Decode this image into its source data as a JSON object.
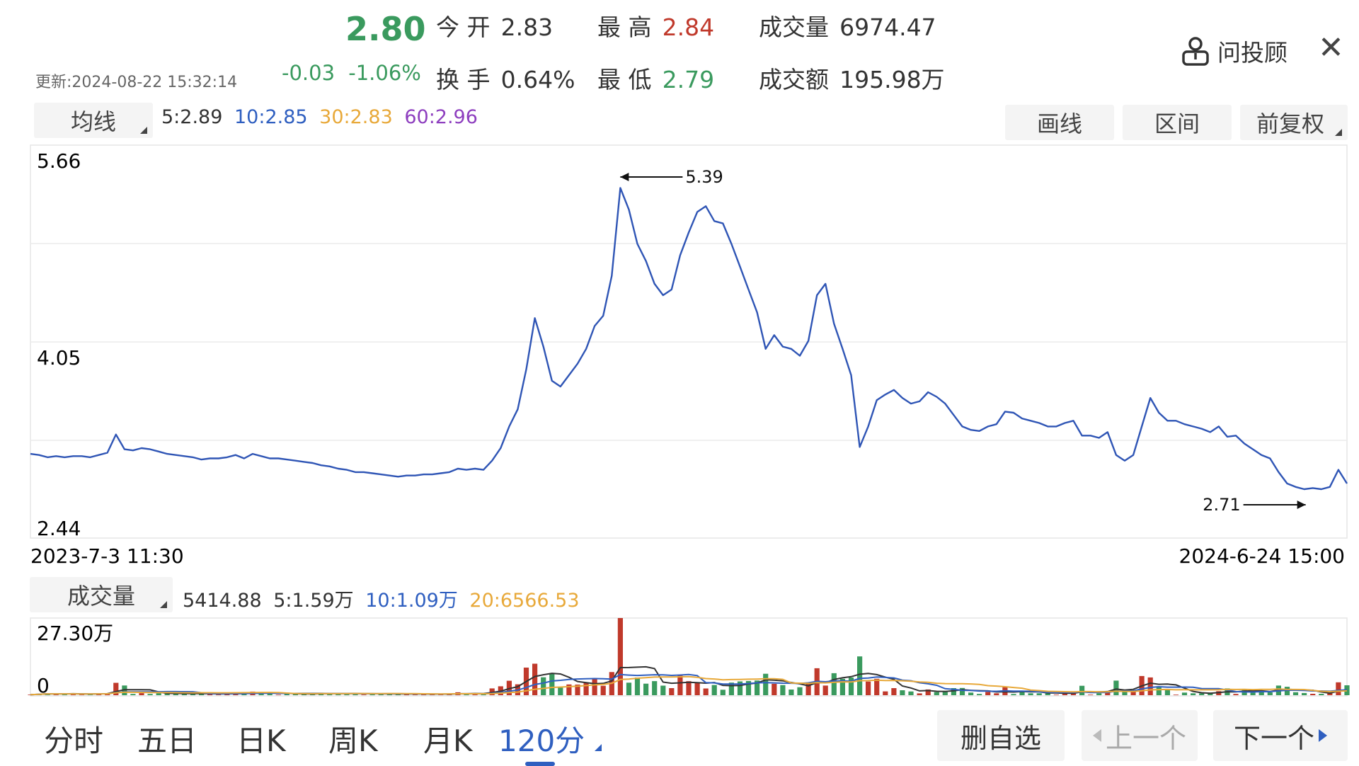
{
  "quote": {
    "price": "2.80",
    "update": "更新:2024-08-22 15:32:14",
    "change": "-0.03",
    "change_pct": "-1.06%",
    "open_label": "今 开",
    "open": "2.83",
    "high_label": "最 高",
    "high": "2.84",
    "volume_label": "成交量",
    "volume": "6974.47",
    "turnover_label": "换 手",
    "turnover": "0.64%",
    "low_label": "最 低",
    "low": "2.79",
    "amount_label": "成交额",
    "amount": "195.98万"
  },
  "header": {
    "advisor_label": "问投顾",
    "close_symbol": "✕"
  },
  "ma_bar": {
    "selector_label": "均线",
    "ma5": "5:2.89",
    "ma10": "10:2.85",
    "ma30": "30:2.83",
    "ma60": "60:2.96",
    "draw_label": "画线",
    "range_label": "区间",
    "adjust_label": "前复权"
  },
  "volume_bar": {
    "selector_label": "成交量",
    "current": "5414.88",
    "ma5": "5:1.59万",
    "ma10": "10:1.09万",
    "ma20": "20:6566.53"
  },
  "colors": {
    "price_line": "#2f55b5",
    "ma5": "#333333",
    "ma10": "#2f5fc0",
    "ma30": "#e8a93a",
    "ma60": "#8e3fbf",
    "up": "#c0392b",
    "down": "#3a9a5e"
  },
  "chart_data": {
    "type": "line",
    "x_start": "2023-7-3 11:30",
    "x_end": "2024-6-24 15:00",
    "ylim": [
      2.44,
      5.66
    ],
    "y_ticks": [
      "5.66",
      "4.05",
      "2.44"
    ],
    "max_label": "5.39",
    "min_label": "2.71",
    "max_value": 5.39,
    "min_value": 2.71,
    "price": [
      3.06,
      3.05,
      3.03,
      3.04,
      3.03,
      3.04,
      3.04,
      3.03,
      3.05,
      3.07,
      3.23,
      3.1,
      3.09,
      3.11,
      3.1,
      3.08,
      3.06,
      3.05,
      3.04,
      3.03,
      3.01,
      3.02,
      3.02,
      3.03,
      3.05,
      3.02,
      3.06,
      3.04,
      3.02,
      3.02,
      3.01,
      3.0,
      2.99,
      2.98,
      2.96,
      2.95,
      2.93,
      2.92,
      2.9,
      2.9,
      2.89,
      2.88,
      2.87,
      2.86,
      2.87,
      2.87,
      2.88,
      2.88,
      2.89,
      2.9,
      2.93,
      2.92,
      2.93,
      2.92,
      3.0,
      3.11,
      3.3,
      3.45,
      3.8,
      4.25,
      4.0,
      3.7,
      3.65,
      3.75,
      3.85,
      3.98,
      4.18,
      4.27,
      4.62,
      5.39,
      5.2,
      4.9,
      4.75,
      4.55,
      4.45,
      4.5,
      4.8,
      5.0,
      5.18,
      5.23,
      5.1,
      5.08,
      4.9,
      4.7,
      4.5,
      4.3,
      3.98,
      4.1,
      4.0,
      3.98,
      3.92,
      4.05,
      4.45,
      4.55,
      4.2,
      3.98,
      3.75,
      3.12,
      3.3,
      3.53,
      3.58,
      3.62,
      3.55,
      3.5,
      3.52,
      3.6,
      3.56,
      3.5,
      3.4,
      3.3,
      3.27,
      3.26,
      3.3,
      3.32,
      3.43,
      3.42,
      3.37,
      3.35,
      3.33,
      3.3,
      3.3,
      3.33,
      3.35,
      3.22,
      3.22,
      3.2,
      3.25,
      3.05,
      3.0,
      3.05,
      3.3,
      3.55,
      3.42,
      3.35,
      3.35,
      3.32,
      3.3,
      3.28,
      3.25,
      3.3,
      3.21,
      3.22,
      3.15,
      3.1,
      3.05,
      3.02,
      2.9,
      2.8,
      2.77,
      2.75,
      2.76,
      2.75,
      2.77,
      2.92,
      2.8
    ]
  },
  "volume_chart": {
    "type": "bar",
    "max_label": "27.30万",
    "zero_label": "0",
    "ylim": [
      0,
      27.3
    ],
    "peak": 27.3
  },
  "nav": {
    "tabs": [
      "分时",
      "五日",
      "日K",
      "周K",
      "月K",
      "120分"
    ],
    "active_index": 5,
    "delete_label": "删自选",
    "prev_label": "上一个",
    "next_label": "下一个"
  }
}
